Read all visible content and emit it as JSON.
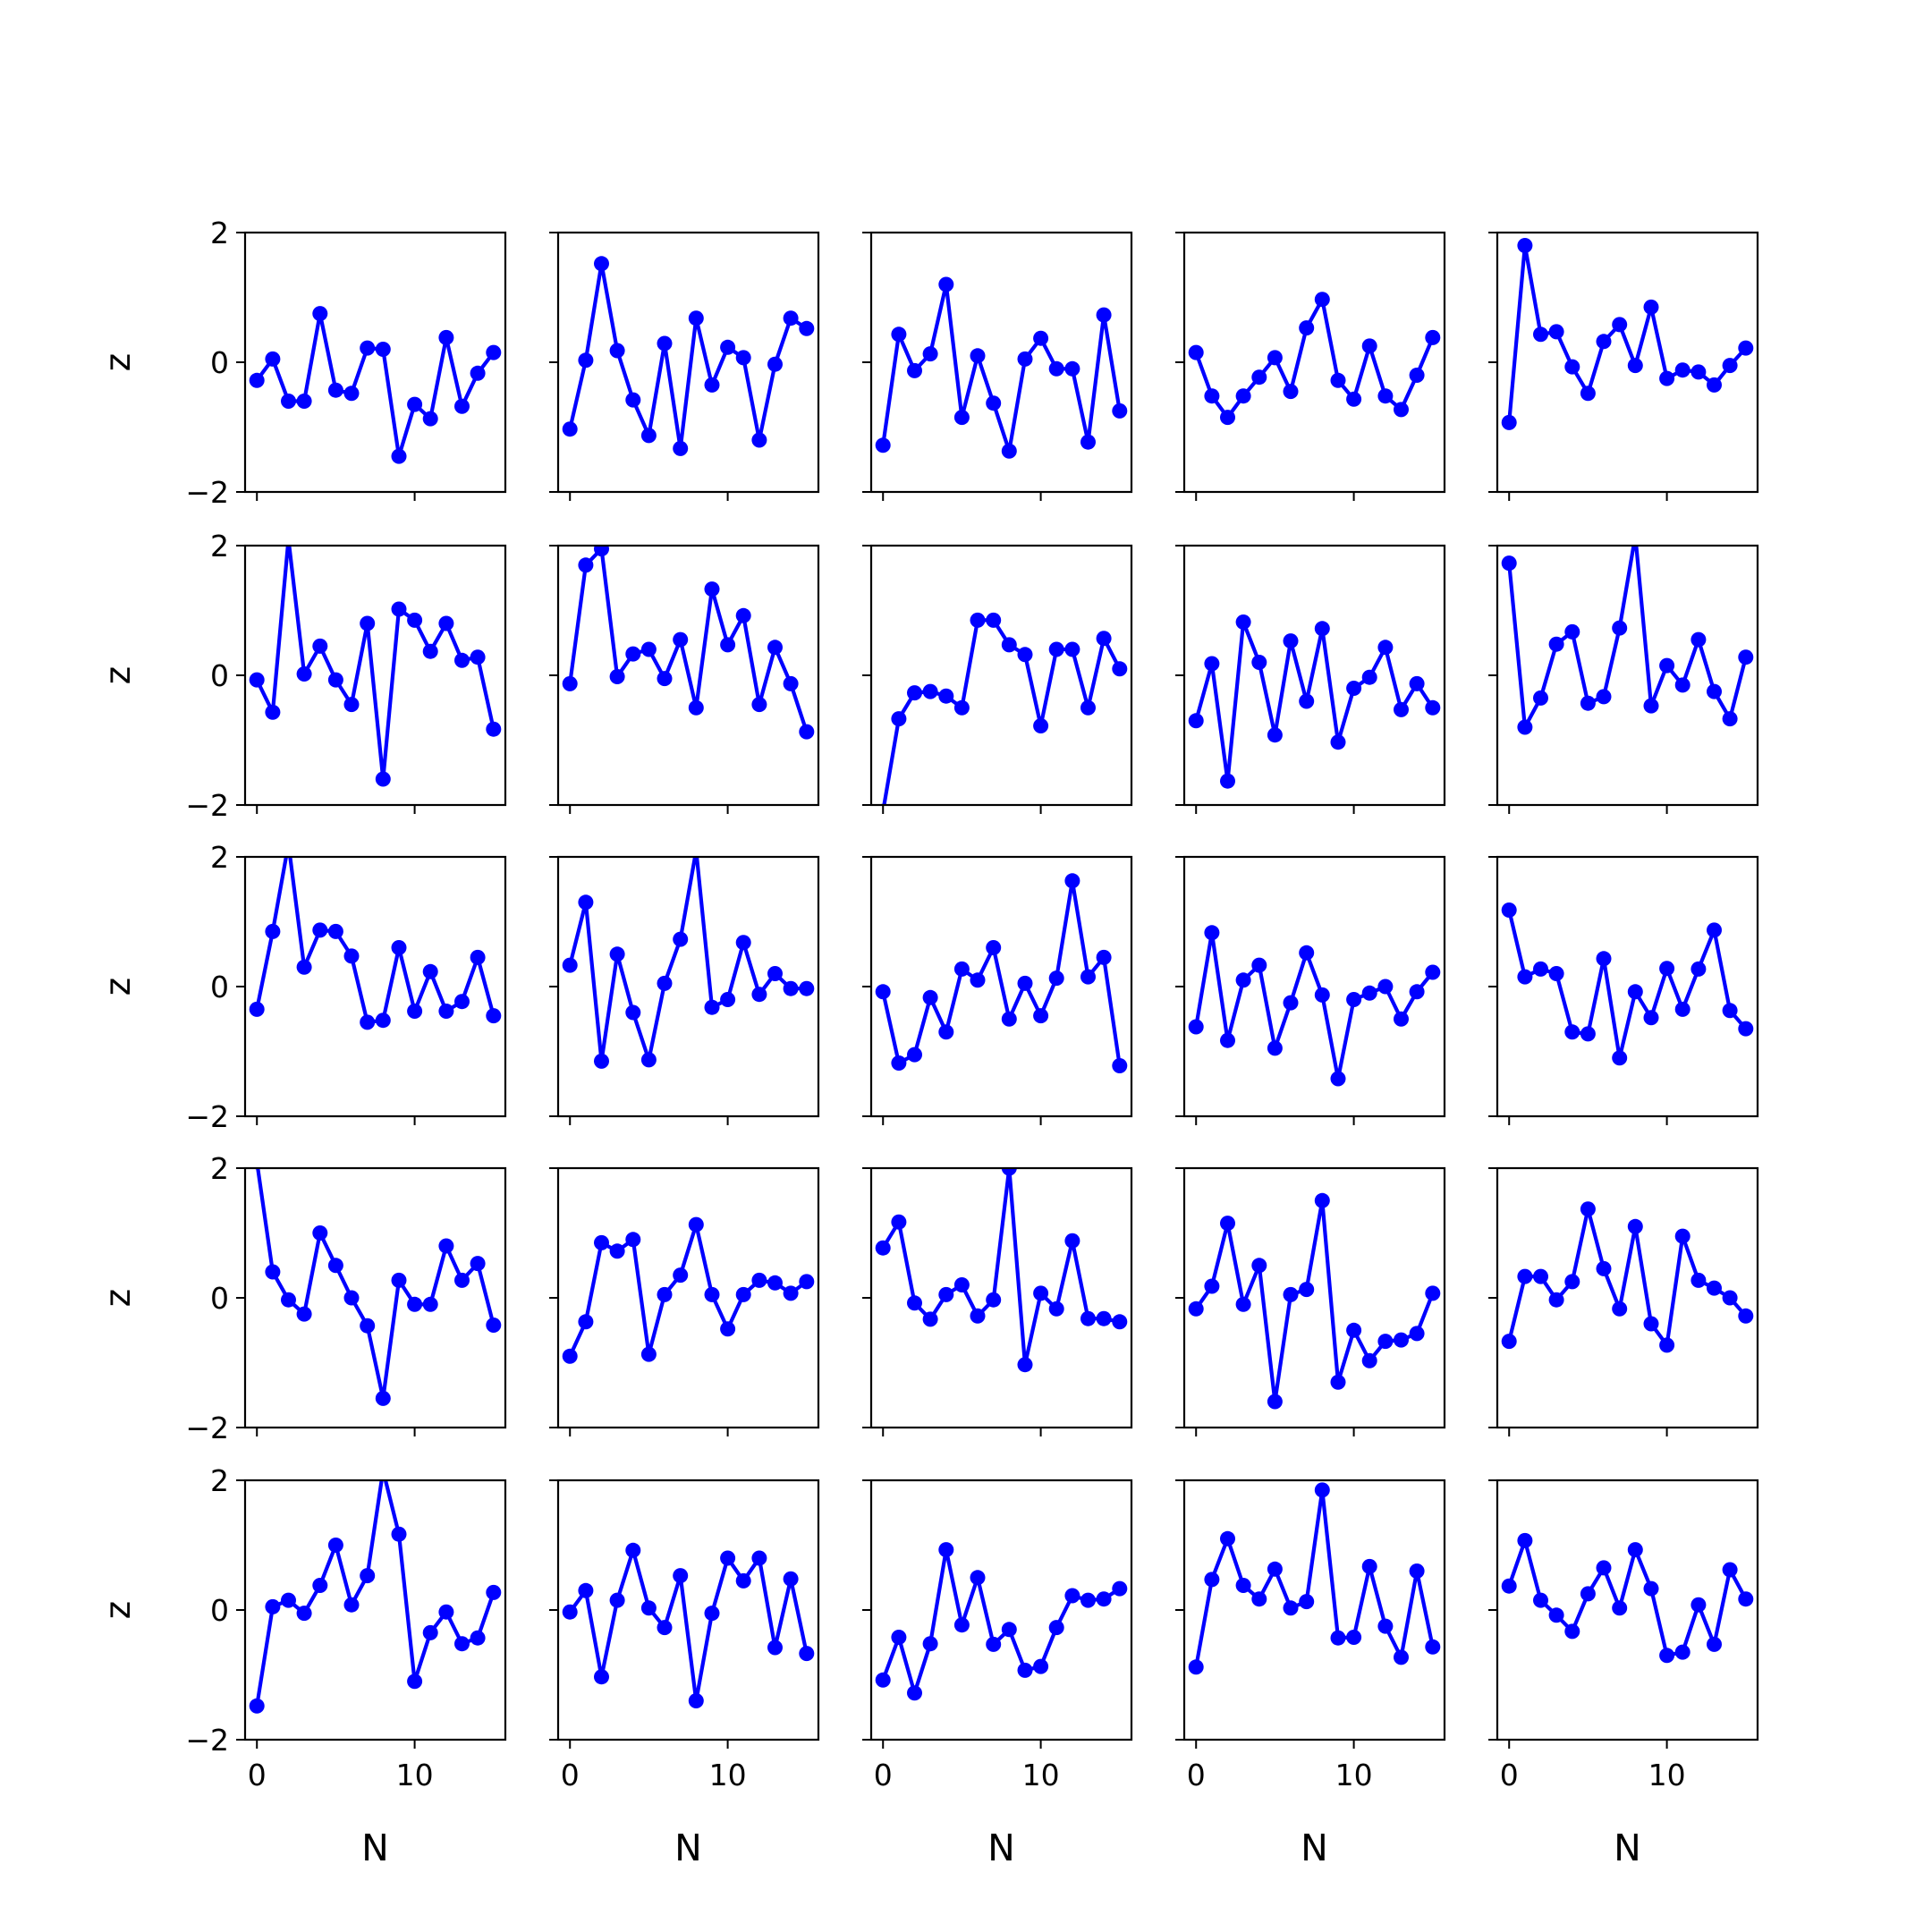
{
  "colors": {
    "line": "#0000ff",
    "axes": "#000000",
    "background": "#ffffff"
  },
  "chart_data": {
    "type": "line",
    "layout": {
      "rows": 5,
      "cols": 5,
      "sharex": true,
      "sharey": true
    },
    "xlabel": "N",
    "ylabel": "z",
    "xlim": [
      -0.75,
      15.75
    ],
    "ylim": [
      -2,
      2
    ],
    "xticks": [
      0,
      10
    ],
    "yticks": [
      -2,
      0,
      2
    ],
    "ytick_labels": [
      "−2",
      "0",
      "2"
    ],
    "xtick_labels": [
      "0",
      "10"
    ],
    "x": [
      0,
      1,
      2,
      3,
      4,
      5,
      6,
      7,
      8,
      9,
      10,
      11,
      12,
      13,
      14,
      15
    ],
    "marker": "o",
    "grid": false,
    "panels": [
      [
        [
          -0.28,
          0.05,
          -0.6,
          -0.6,
          0.75,
          -0.43,
          -0.48,
          0.22,
          0.2,
          -1.45,
          -0.65,
          -0.87,
          0.38,
          -0.68,
          -0.17,
          0.15
        ],
        [
          -1.03,
          0.03,
          1.52,
          0.18,
          -0.58,
          -1.13,
          0.29,
          -1.33,
          0.68,
          -0.35,
          0.23,
          0.07,
          -1.2,
          -0.03,
          0.68,
          0.52
        ],
        [
          -1.28,
          0.43,
          -0.13,
          0.13,
          1.2,
          -0.85,
          0.1,
          -0.63,
          -1.37,
          0.05,
          0.37,
          -0.1,
          -0.1,
          -1.23,
          0.73,
          -0.75
        ],
        [
          0.15,
          -0.52,
          -0.85,
          -0.52,
          -0.23,
          0.07,
          -0.45,
          0.53,
          0.97,
          -0.28,
          -0.57,
          0.25,
          -0.52,
          -0.73,
          -0.2,
          0.38
        ],
        [
          -0.93,
          1.8,
          0.43,
          0.47,
          -0.07,
          -0.48,
          0.32,
          0.58,
          -0.05,
          0.85,
          -0.25,
          -0.12,
          -0.15,
          -0.35,
          -0.05,
          0.22
        ]
      ],
      [
        [
          -0.07,
          -0.57,
          2.1,
          0.02,
          0.45,
          -0.07,
          -0.45,
          0.8,
          -1.6,
          1.02,
          0.85,
          0.37,
          0.8,
          0.23,
          0.28,
          -0.83
        ],
        [
          -0.13,
          1.7,
          1.95,
          -0.02,
          0.33,
          0.4,
          -0.05,
          0.55,
          -0.5,
          1.33,
          0.47,
          0.92,
          -0.45,
          0.43,
          -0.13,
          -0.87
        ],
        [
          -2.1,
          -0.67,
          -0.27,
          -0.25,
          -0.32,
          -0.5,
          0.85,
          0.85,
          0.47,
          0.32,
          -0.78,
          0.4,
          0.4,
          -0.5,
          0.57,
          0.1
        ],
        [
          -0.7,
          0.18,
          -1.63,
          0.82,
          0.2,
          -0.92,
          0.53,
          -0.4,
          0.72,
          -1.03,
          -0.2,
          -0.03,
          0.43,
          -0.53,
          -0.13,
          -0.5
        ],
        [
          1.73,
          -0.8,
          -0.35,
          0.48,
          0.67,
          -0.43,
          -0.33,
          0.73,
          2.15,
          -0.47,
          0.15,
          -0.15,
          0.55,
          -0.25,
          -0.67,
          0.28
        ]
      ],
      [
        [
          -0.35,
          0.85,
          2.2,
          0.3,
          0.87,
          0.85,
          0.47,
          -0.55,
          -0.52,
          0.6,
          -0.38,
          0.23,
          -0.38,
          -0.23,
          0.45,
          -0.45
        ],
        [
          0.33,
          1.3,
          -1.15,
          0.5,
          -0.4,
          -1.13,
          0.05,
          0.73,
          2.1,
          -0.32,
          -0.2,
          0.68,
          -0.12,
          0.2,
          -0.03,
          -0.03
        ],
        [
          -0.08,
          -1.18,
          -1.05,
          -0.17,
          -0.7,
          0.27,
          0.1,
          0.6,
          -0.5,
          0.05,
          -0.45,
          0.13,
          1.63,
          0.15,
          0.45,
          -1.22
        ],
        [
          -0.62,
          0.83,
          -0.83,
          0.1,
          0.33,
          -0.95,
          -0.25,
          0.52,
          -0.13,
          -1.42,
          -0.2,
          -0.1,
          0.0,
          -0.5,
          -0.08,
          0.22
        ],
        [
          1.18,
          0.15,
          0.27,
          0.2,
          -0.7,
          -0.73,
          0.43,
          -1.1,
          -0.08,
          -0.48,
          0.28,
          -0.35,
          0.27,
          0.87,
          -0.37,
          -0.65
        ]
      ],
      [
        [
          2.1,
          0.4,
          -0.03,
          -0.25,
          1.0,
          0.5,
          0.0,
          -0.43,
          -1.55,
          0.27,
          -0.1,
          -0.1,
          0.8,
          0.27,
          0.53,
          -0.42
        ],
        [
          -0.9,
          -0.37,
          0.85,
          0.72,
          0.9,
          -0.87,
          0.05,
          0.35,
          1.13,
          0.05,
          -0.48,
          0.05,
          0.27,
          0.23,
          0.07,
          0.25
        ],
        [
          0.77,
          1.17,
          -0.08,
          -0.33,
          0.05,
          0.2,
          -0.28,
          -0.03,
          2.0,
          -1.03,
          0.07,
          -0.17,
          0.88,
          -0.32,
          -0.32,
          -0.37
        ],
        [
          -0.17,
          0.18,
          1.15,
          -0.1,
          0.5,
          -1.6,
          0.05,
          0.13,
          1.5,
          -1.3,
          -0.5,
          -0.97,
          -0.67,
          -0.65,
          -0.55,
          0.07
        ],
        [
          -0.67,
          0.33,
          0.33,
          -0.03,
          0.25,
          1.37,
          0.45,
          -0.17,
          1.1,
          -0.4,
          -0.73,
          0.95,
          0.27,
          0.15,
          0.0,
          -0.28
        ]
      ],
      [
        [
          -1.48,
          0.05,
          0.15,
          -0.05,
          0.38,
          1.0,
          0.08,
          0.53,
          2.15,
          1.17,
          -1.1,
          -0.35,
          -0.03,
          -0.52,
          -0.43,
          0.27
        ],
        [
          -0.03,
          0.3,
          -1.03,
          0.15,
          0.92,
          0.03,
          -0.27,
          0.53,
          -1.4,
          -0.05,
          0.8,
          0.45,
          0.8,
          -0.58,
          0.48,
          -0.67
        ],
        [
          -1.08,
          -0.42,
          -1.28,
          -0.52,
          0.93,
          -0.23,
          0.5,
          -0.53,
          -0.3,
          -0.93,
          -0.87,
          -0.27,
          0.22,
          0.15,
          0.17,
          0.33
        ],
        [
          -0.88,
          0.47,
          1.1,
          0.38,
          0.17,
          0.63,
          0.03,
          0.13,
          1.85,
          -0.43,
          -0.42,
          0.67,
          -0.25,
          -0.73,
          0.6,
          -0.57
        ],
        [
          0.37,
          1.07,
          0.15,
          -0.08,
          -0.33,
          0.25,
          0.65,
          0.03,
          0.93,
          0.33,
          -0.7,
          -0.65,
          0.08,
          -0.53,
          0.62,
          0.17
        ]
      ]
    ]
  }
}
